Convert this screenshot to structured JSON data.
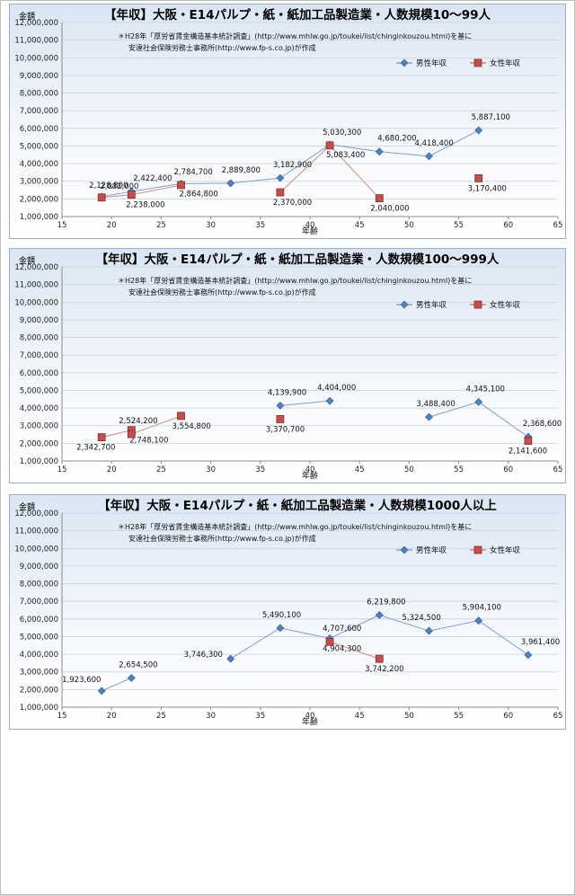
{
  "chart_data": [
    {
      "type": "scatter",
      "title": "【年収】大阪・E14パルプ・紙・紙加工品製造業・人数規模10～99人",
      "note_lines": [
        "＊H28年「厚労省賃金構造基本統計調査」(http://www.mhlw.go.jp/toukei/list/chinginkouzou.html)を基に",
        "安達社会保険労務士事務所(http://www.fp-s.co.jp)が作成"
      ],
      "xlabel": "年齢",
      "ylabel": "金額",
      "xlim": [
        15,
        65
      ],
      "ylim": [
        1000000,
        12000000
      ],
      "xticks": [
        "15",
        "20",
        "25",
        "30",
        "35",
        "40",
        "45",
        "50",
        "55",
        "60",
        "65"
      ],
      "yticks": [
        "1,000,000",
        "2,000,000",
        "3,000,000",
        "4,000,000",
        "5,000,000",
        "6,000,000",
        "7,000,000",
        "8,000,000",
        "9,000,000",
        "10,000,000",
        "11,000,000",
        "12,000,000"
      ],
      "legend_position": "top-right",
      "series": [
        {
          "name": "男性年収",
          "color": "#4f81bd",
          "marker": "diamond",
          "points": [
            {
              "x": 19,
              "y": 2128800,
              "label": "2,128,800"
            },
            {
              "x": 22,
              "y": 2422400,
              "label": "2,422,400"
            },
            {
              "x": 27,
              "y": 2864800,
              "label": "2,864,800"
            },
            {
              "x": 32,
              "y": 2889800,
              "label": "2,889,800"
            },
            {
              "x": 37,
              "y": 3182900,
              "label": "3,182,900"
            },
            {
              "x": 42,
              "y": 5083400,
              "label": "5,083,400"
            },
            {
              "x": 47,
              "y": 4680200,
              "label": "4,680,200"
            },
            {
              "x": 52,
              "y": 4418400,
              "label": "4,418,400"
            },
            {
              "x": 57,
              "y": 5887100,
              "label": "5,887,100"
            }
          ]
        },
        {
          "name": "女性年収",
          "color": "#c0504d",
          "marker": "square",
          "points": [
            {
              "x": 19,
              "y": 2082000,
              "label": "2,082,000"
            },
            {
              "x": 22,
              "y": 2238000,
              "label": "2,238,000"
            },
            {
              "x": 27,
              "y": 2784700,
              "label": "2,784,700"
            },
            {
              "x": 37,
              "y": 2370000,
              "label": "2,370,000"
            },
            {
              "x": 42,
              "y": 5030300,
              "label": "5,030,300"
            },
            {
              "x": 47,
              "y": 2040000,
              "label": "2,040,000"
            },
            {
              "x": 57,
              "y": 3170400,
              "label": "3,170,400"
            }
          ]
        }
      ]
    },
    {
      "type": "scatter",
      "title": "【年収】大阪・E14パルプ・紙・紙加工品製造業・人数規模100～999人",
      "note_lines": [
        "＊H28年「厚労省賃金構造基本統計調査」(http://www.mhlw.go.jp/toukei/list/chinginkouzou.html)を基に",
        "安達社会保険労務士事務所(http://www.fp-s.co.jp)が作成"
      ],
      "xlabel": "年齢",
      "ylabel": "金額",
      "xlim": [
        15,
        65
      ],
      "ylim": [
        1000000,
        12000000
      ],
      "xticks": [
        "15",
        "20",
        "25",
        "30",
        "35",
        "40",
        "45",
        "50",
        "55",
        "60",
        "65"
      ],
      "yticks": [
        "1,000,000",
        "2,000,000",
        "3,000,000",
        "4,000,000",
        "5,000,000",
        "6,000,000",
        "7,000,000",
        "8,000,000",
        "9,000,000",
        "10,000,000",
        "11,000,000",
        "12,000,000"
      ],
      "legend_position": "top-right",
      "series": [
        {
          "name": "男性年収",
          "color": "#4f81bd",
          "marker": "diamond",
          "points": [
            {
              "x": 37,
              "y": 4139900,
              "label": "4,139,900"
            },
            {
              "x": 42,
              "y": 4404000,
              "label": "4,404,000"
            },
            {
              "x": 52,
              "y": 3488400,
              "label": "3,488,400"
            },
            {
              "x": 57,
              "y": 4345100,
              "label": "4,345,100"
            },
            {
              "x": 62,
              "y": 2368600,
              "label": "2,368,600"
            }
          ]
        },
        {
          "name": "女性年収",
          "color": "#c0504d",
          "marker": "square",
          "points": [
            {
              "x": 19,
              "y": 2342700,
              "label": "2,342,700"
            },
            {
              "x": 22,
              "y": 2748100,
              "label": "2,748,100"
            },
            {
              "x": 27,
              "y": 3554800,
              "label": "3,554,800"
            },
            {
              "x": 37,
              "y": 3370700,
              "label": "3,370,700"
            },
            {
              "x": 62,
              "y": 2141600,
              "label": "2,141,600"
            },
            {
              "x": 22,
              "y": 2524200,
              "label": "2,524,200"
            }
          ]
        }
      ]
    },
    {
      "type": "scatter",
      "title": "【年収】大阪・E14パルプ・紙・紙加工品製造業・人数規模1000人以上",
      "note_lines": [
        "＊H28年「厚労省賃金構造基本統計調査」(http://www.mhlw.go.jp/toukei/list/chinginkouzou.html)を基に",
        "安達社会保険労務士事務所(http://www.fp-s.co.jp)が作成"
      ],
      "xlabel": "年齢",
      "ylabel": "金額",
      "xlim": [
        15,
        65
      ],
      "ylim": [
        1000000,
        12000000
      ],
      "xticks": [
        "15",
        "20",
        "25",
        "30",
        "35",
        "40",
        "45",
        "50",
        "55",
        "60",
        "65"
      ],
      "yticks": [
        "1,000,000",
        "2,000,000",
        "3,000,000",
        "4,000,000",
        "5,000,000",
        "6,000,000",
        "7,000,000",
        "8,000,000",
        "9,000,000",
        "10,000,000",
        "11,000,000",
        "12,000,000"
      ],
      "legend_position": "top-right",
      "series": [
        {
          "name": "男性年収",
          "color": "#4f81bd",
          "marker": "diamond",
          "points": [
            {
              "x": 19,
              "y": 1923600,
              "label": "1,923,600"
            },
            {
              "x": 22,
              "y": 2654500,
              "label": "2,654,500"
            },
            {
              "x": 32,
              "y": 3746300,
              "label": "3,746,300"
            },
            {
              "x": 37,
              "y": 5490100,
              "label": "5,490,100"
            },
            {
              "x": 42,
              "y": 4904300,
              "label": "4,904,300"
            },
            {
              "x": 47,
              "y": 6219800,
              "label": "6,219,800"
            },
            {
              "x": 52,
              "y": 5324500,
              "label": "5,324,500"
            },
            {
              "x": 57,
              "y": 5904100,
              "label": "5,904,100"
            },
            {
              "x": 62,
              "y": 3961400,
              "label": "3,961,400"
            }
          ]
        },
        {
          "name": "女性年収",
          "color": "#c0504d",
          "marker": "square",
          "points": [
            {
              "x": 42,
              "y": 4707600,
              "label": "4,707,600"
            },
            {
              "x": 47,
              "y": 3742200,
              "label": "3,742,200"
            }
          ]
        }
      ]
    }
  ]
}
